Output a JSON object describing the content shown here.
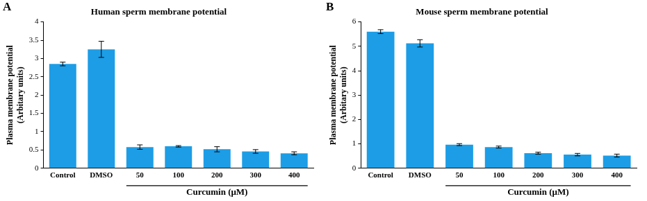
{
  "chart_data": [
    {
      "type": "bar",
      "panel": "A",
      "title": "Human sperm membrane potential",
      "ylabel": [
        "Plasma membrane potential",
        "(Arbitary units)"
      ],
      "xlabel": "Curcumin (μM)",
      "categories": [
        "Control",
        "DMSO",
        "50",
        "100",
        "200",
        "300",
        "400"
      ],
      "values": [
        2.85,
        3.25,
        0.58,
        0.6,
        0.52,
        0.46,
        0.41
      ],
      "errors": [
        0.05,
        0.22,
        0.06,
        0.02,
        0.07,
        0.05,
        0.04
      ],
      "color": "#1c9de6",
      "ylim": [
        0,
        4
      ],
      "yticks": [
        0,
        0.5,
        1,
        1.5,
        2,
        2.5,
        3,
        3.5,
        4
      ],
      "grid": false
    },
    {
      "type": "bar",
      "panel": "B",
      "title": "Mouse sperm membrane potential",
      "ylabel": [
        "Plasma membrane potential",
        "(Arbitary units)"
      ],
      "xlabel": "Curcumin (μM)",
      "categories": [
        "Control",
        "DMSO",
        "50",
        "100",
        "200",
        "300",
        "400"
      ],
      "values": [
        5.6,
        5.12,
        0.97,
        0.87,
        0.62,
        0.56,
        0.52
      ],
      "errors": [
        0.08,
        0.15,
        0.04,
        0.04,
        0.04,
        0.05,
        0.06
      ],
      "color": "#1c9de6",
      "ylim": [
        0,
        6
      ],
      "yticks": [
        0,
        1,
        2,
        3,
        4,
        5,
        6
      ],
      "grid": false
    }
  ]
}
